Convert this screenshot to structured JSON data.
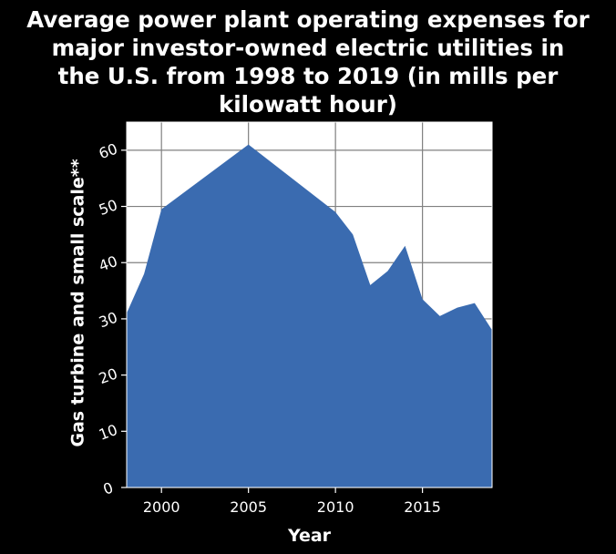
{
  "title_lines": [
    "Average power plant operating expenses for",
    "major investor-owned electric utilities in",
    "the U.S. from 1998 to 2019 (in mills per",
    "kilowatt hour)"
  ],
  "colors": {
    "background": "#000000",
    "plot_background": "#ffffff",
    "area_fill": "#3a6bb0",
    "grid": "#808080",
    "text": "#ffffff"
  },
  "chart_data": {
    "type": "area",
    "title": "Average power plant operating expenses for major investor-owned electric utilities in the U.S. from 1998 to 2019 (in mills per kilowatt hour)",
    "xlabel": "Year",
    "ylabel": "Gas turbine and small scale**",
    "x": [
      1998,
      1999,
      2000,
      2005,
      2010,
      2011,
      2012,
      2013,
      2014,
      2015,
      2016,
      2017,
      2018,
      2019
    ],
    "values": [
      31,
      38,
      49.5,
      61,
      49,
      45,
      36,
      38.5,
      43,
      33.5,
      30.5,
      32,
      32.8,
      28
    ],
    "xlim": [
      1998,
      2019
    ],
    "ylim": [
      0,
      65
    ],
    "xticks": [
      2000,
      2005,
      2010,
      2015
    ],
    "yticks": [
      0,
      10,
      20,
      30,
      40,
      50,
      60
    ],
    "xtick_labels": [
      "2000",
      "2005",
      "2010",
      "2015"
    ],
    "ytick_labels": [
      "0",
      "10",
      "20",
      "30",
      "40",
      "50",
      "60"
    ],
    "grid": true,
    "legend": "none"
  }
}
